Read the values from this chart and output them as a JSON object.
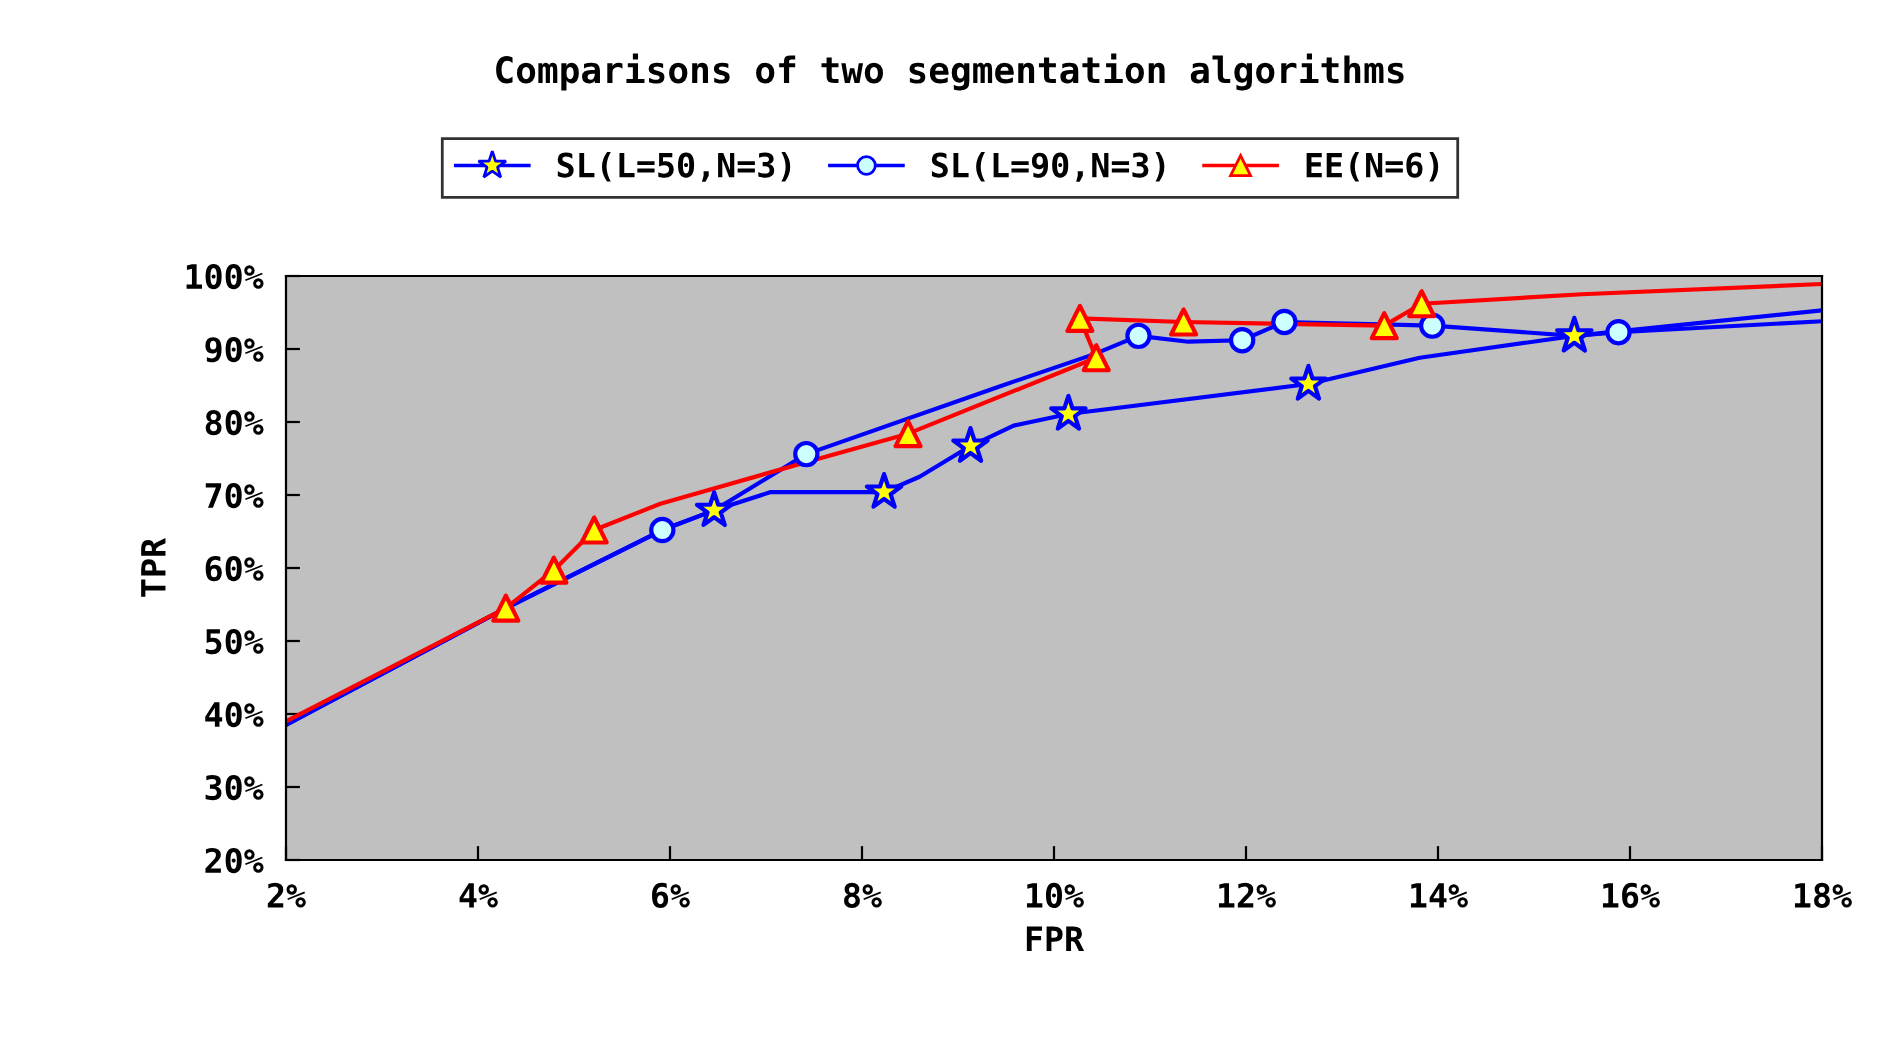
{
  "chart_data": {
    "type": "line",
    "title": "Comparisons of two segmentation algorithms",
    "xlabel": "FPR",
    "ylabel": "TPR",
    "xlim": [
      2,
      18
    ],
    "ylim": [
      20,
      100
    ],
    "xticks": [
      {
        "value": 2,
        "label": "2%"
      },
      {
        "value": 4,
        "label": "4%"
      },
      {
        "value": 6,
        "label": "6%"
      },
      {
        "value": 8,
        "label": "8%"
      },
      {
        "value": 10,
        "label": "10%"
      },
      {
        "value": 12,
        "label": "12%"
      },
      {
        "value": 14,
        "label": "14%"
      },
      {
        "value": 16,
        "label": "16%"
      },
      {
        "value": 18,
        "label": "18%"
      }
    ],
    "yticks": [
      {
        "value": 20,
        "label": "20%"
      },
      {
        "value": 30,
        "label": "30%"
      },
      {
        "value": 40,
        "label": "40%"
      },
      {
        "value": 50,
        "label": "50%"
      },
      {
        "value": 60,
        "label": "60%"
      },
      {
        "value": 70,
        "label": "70%"
      },
      {
        "value": 80,
        "label": "80%"
      },
      {
        "value": 90,
        "label": "90%"
      },
      {
        "value": 100,
        "label": "100%"
      }
    ],
    "grid": false,
    "legend": "top",
    "series": [
      {
        "marker": "none",
        "color": "#0000ff",
        "x": [
          2,
          4.29,
          5.92,
          6.46,
          7.05,
          8.23,
          8.6,
          9.13,
          9.58,
          10.15,
          12.65,
          13.81,
          15.42,
          18
        ],
        "values": [
          38.5,
          54.5,
          65.2,
          67.9,
          70.4,
          70.4,
          72.5,
          76.7,
          79.5,
          81.1,
          85.2,
          88.8,
          91.8,
          95.3
        ]
      },
      {
        "marker": "none",
        "color": "#0000ff",
        "x": [
          2,
          4.29,
          5.92,
          6.46,
          7.42,
          9.44,
          10.42,
          10.88,
          11.4,
          11.96,
          12.4,
          13.94,
          15.42,
          15.88,
          18
        ],
        "values": [
          38.5,
          54.5,
          65.2,
          67.9,
          75.6,
          84.9,
          89.3,
          91.8,
          91.0,
          91.2,
          93.7,
          93.2,
          91.8,
          92.3,
          93.8
        ]
      },
      {
        "marker": "none",
        "color": "#ff0000",
        "x": [
          2,
          4.29,
          4.79,
          5.21,
          5.9,
          7.5,
          8.48,
          10.44,
          10.27,
          11.35,
          13.44,
          13.83,
          15.5,
          18
        ],
        "values": [
          39.0,
          54.5,
          59.7,
          65.2,
          68.8,
          74.8,
          78.4,
          88.8,
          94.2,
          93.7,
          93.2,
          96.2,
          97.5,
          98.9
        ]
      },
      {
        "type": "scatter",
        "name": "SL(L=50,N=3)",
        "marker": "star",
        "color": "#0000ff",
        "x": [
          6.46,
          8.23,
          9.13,
          10.15,
          12.65,
          15.42
        ],
        "values": [
          67.9,
          70.4,
          76.7,
          81.1,
          85.2,
          91.8
        ]
      },
      {
        "type": "scatter",
        "name": "SL(L=90,N=3)",
        "marker": "circle",
        "color": "#0000ff",
        "x": [
          5.92,
          7.42,
          10.88,
          11.96,
          12.4,
          13.94,
          15.88
        ],
        "values": [
          65.2,
          75.6,
          91.8,
          91.2,
          93.7,
          93.2,
          92.3
        ]
      },
      {
        "type": "scatter",
        "name": "EE(N=6)",
        "marker": "triangle",
        "color": "#ff0000",
        "x": [
          4.29,
          4.79,
          5.21,
          8.48,
          10.44,
          10.27,
          11.35,
          13.44,
          13.83
        ],
        "values": [
          54.5,
          59.7,
          65.2,
          78.4,
          88.8,
          94.2,
          93.7,
          93.2,
          96.2
        ]
      }
    ]
  }
}
